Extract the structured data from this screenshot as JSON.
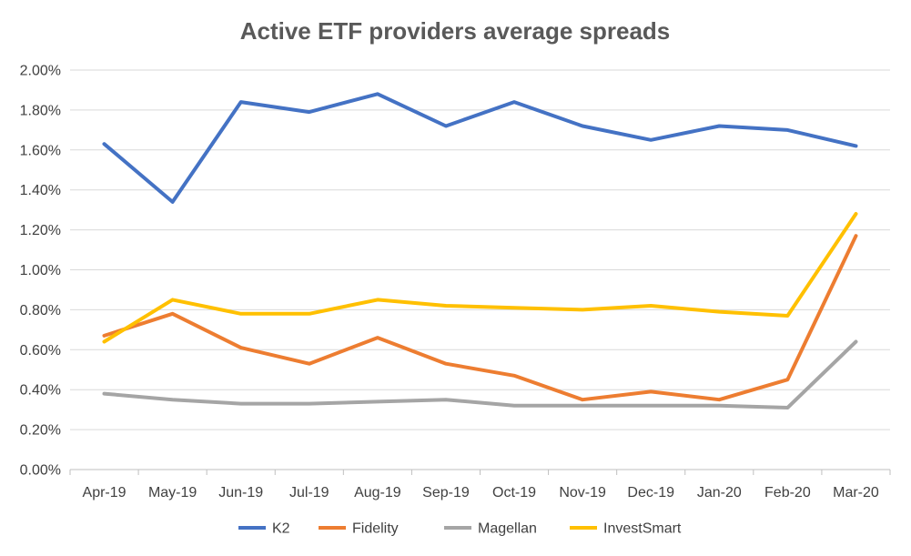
{
  "chart_data": {
    "type": "line",
    "title": "Active ETF providers average spreads",
    "xlabel": "",
    "ylabel": "",
    "categories": [
      "Apr-19",
      "May-19",
      "Jun-19",
      "Jul-19",
      "Aug-19",
      "Sep-19",
      "Oct-19",
      "Nov-19",
      "Dec-19",
      "Jan-20",
      "Feb-20",
      "Mar-20"
    ],
    "ylim": [
      0,
      2.0
    ],
    "yticks": [
      0,
      0.2,
      0.4,
      0.6,
      0.8,
      1.0,
      1.2,
      1.4,
      1.6,
      1.8,
      2.0
    ],
    "ytick_labels": [
      "0.00%",
      "0.20%",
      "0.40%",
      "0.60%",
      "0.80%",
      "1.00%",
      "1.20%",
      "1.40%",
      "1.60%",
      "1.80%",
      "2.00%"
    ],
    "grid": true,
    "legend_position": "bottom",
    "series": [
      {
        "name": "K2",
        "color": "#4472c4",
        "values": [
          1.63,
          1.34,
          1.84,
          1.79,
          1.88,
          1.72,
          1.84,
          1.72,
          1.65,
          1.72,
          1.7,
          1.62
        ]
      },
      {
        "name": "Fidelity",
        "color": "#ed7d31",
        "values": [
          0.67,
          0.78,
          0.61,
          0.53,
          0.66,
          0.53,
          0.47,
          0.35,
          0.39,
          0.35,
          0.45,
          1.17
        ]
      },
      {
        "name": "Magellan",
        "color": "#a5a5a5",
        "values": [
          0.38,
          0.35,
          0.33,
          0.33,
          0.34,
          0.35,
          0.32,
          0.32,
          0.32,
          0.32,
          0.31,
          0.64
        ]
      },
      {
        "name": "InvestSmart",
        "color": "#ffc000",
        "values": [
          0.64,
          0.85,
          0.78,
          0.78,
          0.85,
          0.82,
          0.81,
          0.8,
          0.82,
          0.79,
          0.77,
          1.28
        ]
      }
    ]
  }
}
